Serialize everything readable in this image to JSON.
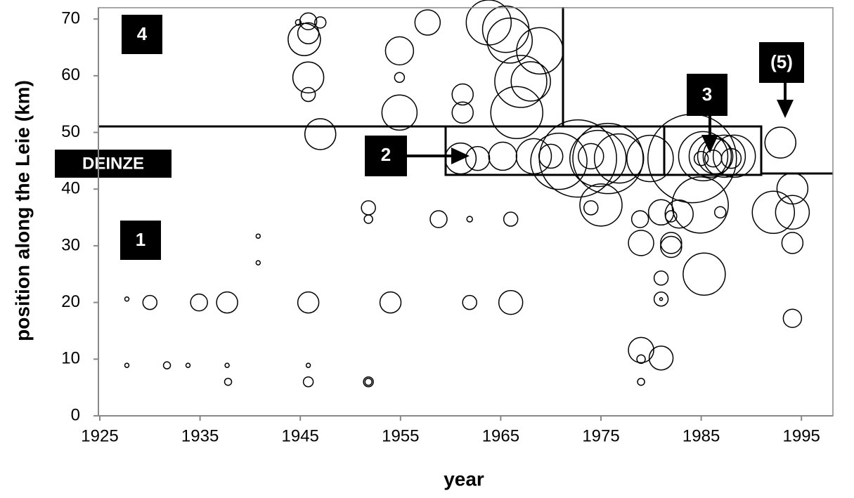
{
  "chart_data": {
    "type": "bubble",
    "x_label": "year",
    "y_label": "position along the Leie (km)",
    "annotations": [
      "4",
      "1",
      "2",
      "3",
      "(5)",
      "DEINZE"
    ],
    "xlim": [
      1925,
      1998
    ],
    "xticks": [
      1925,
      1935,
      1945,
      1955,
      1965,
      1975,
      1985,
      1995
    ],
    "ylim": [
      0,
      72
    ],
    "yticks": [
      0,
      10,
      20,
      30,
      40,
      50,
      60,
      70
    ],
    "grid": false,
    "series": [
      {
        "color": "#000000",
        "x": [
          1927.7,
          1927.7,
          1930,
          1931.7,
          1933.8,
          1934.9,
          1937.7,
          1937.7,
          1937.8,
          1940.8,
          1940.8,
          1945.8,
          1945.8,
          1945.8,
          1951.8,
          1951.8,
          1951.8,
          1951.8,
          1954,
          1961.9,
          1966,
          1958.8,
          1961.9,
          1966,
          1944.8,
          1945.8,
          1945.8,
          1945.4,
          1947,
          1945.8,
          1945.8,
          1947,
          1954.9,
          1954.9,
          1954.9,
          1957.7,
          1961.2,
          1961.2,
          1961,
          1962.7,
          1963.8,
          1965.5,
          1965.9,
          1967,
          1966.6,
          1968.9,
          1968,
          1965.2,
          1968.3,
          1970,
          1970.8,
          1972.7,
          1974,
          1974.7,
          1975.7,
          1976.8,
          1979.9,
          1975,
          1974,
          1978.9,
          1979,
          1979,
          1979,
          1979,
          1981,
          1981,
          1981,
          1981,
          1981,
          1982,
          1982,
          1982,
          1982.8,
          1984.9,
          1985.3,
          1986.9,
          1984.1,
          1985.2,
          1985.9,
          1986.4,
          1987.3,
          1988.3,
          1988,
          1985,
          1986.2,
          1992.9,
          1992.2,
          1994.1,
          1994.1,
          1994.1,
          1994.1
        ],
        "values": [
          20.6,
          8.9,
          20,
          8.9,
          8.9,
          20,
          20,
          8.9,
          6,
          31.7,
          27,
          8.9,
          6,
          20,
          6,
          6,
          36.7,
          34.7,
          20,
          20,
          20,
          34.7,
          34.7,
          34.7,
          69.4,
          69.6,
          67.5,
          66.4,
          69.4,
          59.7,
          56.7,
          49.7,
          59.7,
          64.4,
          53.5,
          69.4,
          56.7,
          53.5,
          45.4,
          45.4,
          69.4,
          68.2,
          66.2,
          59,
          53.5,
          64.4,
          59,
          45.8,
          45.8,
          45.8,
          44.9,
          45.4,
          45.8,
          45.4,
          45.4,
          45.4,
          45.4,
          37.2,
          36.7,
          34.7,
          30.5,
          11.6,
          10,
          6,
          20.6,
          20.6,
          24.3,
          10.2,
          35.9,
          35.2,
          30.5,
          29.8,
          35.6,
          37.2,
          25,
          35.9,
          45.4,
          45.8,
          45.8,
          45.8,
          45.8,
          45.8,
          45.4,
          45.4,
          45.4,
          48.2,
          35.9,
          40.1,
          35.9,
          30.5,
          17.2
        ],
        "sizes": [
          3,
          3,
          10,
          5,
          3,
          12,
          15,
          3,
          5,
          3,
          3,
          3,
          7,
          15,
          7,
          5,
          10,
          6,
          15,
          10,
          17,
          12,
          4,
          10,
          4,
          12,
          15,
          23,
          8,
          22,
          10,
          22,
          7,
          20,
          25,
          18,
          15,
          15,
          22,
          17,
          32,
          33,
          32,
          37,
          37,
          33,
          28,
          20,
          25,
          17,
          40,
          55,
          18,
          40,
          50,
          35,
          33,
          30,
          10,
          12,
          18,
          18,
          6,
          5,
          10,
          2,
          10,
          17,
          18,
          8,
          15,
          15,
          20,
          40,
          30,
          8,
          63,
          35,
          30,
          25,
          30,
          30,
          14,
          10,
          12,
          22,
          30,
          22,
          24,
          15,
          13
        ]
      }
    ]
  }
}
